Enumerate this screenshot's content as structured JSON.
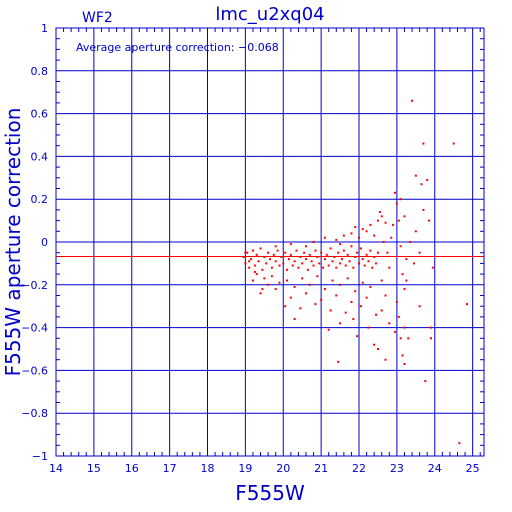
{
  "chart_data": {
    "type": "scatter",
    "title": "lmc_u2xq04",
    "subtitle": "WF2",
    "annotation": "Average aperture correction: −0.068",
    "xlabel": "F555W",
    "ylabel": "F555W aperture correction",
    "xlim": [
      14,
      25.3
    ],
    "ylim": [
      -1,
      1
    ],
    "x_ticks": [
      14,
      15,
      16,
      17,
      18,
      19,
      20,
      21,
      22,
      23,
      24,
      25
    ],
    "y_ticks": [
      -1,
      -0.8,
      -0.6,
      -0.4,
      -0.2,
      0,
      0.2,
      0.4,
      0.6,
      0.8,
      1
    ],
    "x_tick_labels": [
      "14",
      "15",
      "16",
      "17",
      "18",
      "19",
      "20",
      "21",
      "22",
      "23",
      "24",
      "25"
    ],
    "y_tick_labels": [
      "−1",
      "−0.8",
      "−0.6",
      "−0.4",
      "−0.2",
      "0",
      "0.2",
      "0.4",
      "0.6",
      "0.8",
      "1"
    ],
    "grid": true,
    "reference_line": -0.068,
    "colors": {
      "axes": "#0000cc",
      "points": "#ff0000",
      "reference_line": "#ff0000"
    },
    "points": [
      [
        18.95,
        -0.07
      ],
      [
        19.0,
        -0.1
      ],
      [
        19.05,
        -0.05
      ],
      [
        19.1,
        -0.12
      ],
      [
        19.15,
        -0.08
      ],
      [
        19.2,
        -0.04
      ],
      [
        19.25,
        -0.11
      ],
      [
        19.3,
        -0.06
      ],
      [
        19.35,
        -0.09
      ],
      [
        19.4,
        -0.03
      ],
      [
        19.45,
        -0.13
      ],
      [
        19.5,
        -0.07
      ],
      [
        19.55,
        -0.1
      ],
      [
        19.6,
        -0.05
      ],
      [
        19.65,
        -0.08
      ],
      [
        19.7,
        -0.12
      ],
      [
        19.75,
        -0.06
      ],
      [
        19.8,
        -0.09
      ],
      [
        19.85,
        -0.04
      ],
      [
        19.9,
        -0.11
      ],
      [
        19.95,
        -0.07
      ],
      [
        20.0,
        -0.1
      ],
      [
        20.05,
        -0.05
      ],
      [
        20.1,
        -0.13
      ],
      [
        20.15,
        -0.08
      ],
      [
        20.2,
        -0.06
      ],
      [
        20.25,
        -0.11
      ],
      [
        20.3,
        -0.09
      ],
      [
        20.35,
        -0.04
      ],
      [
        20.4,
        -0.12
      ],
      [
        20.45,
        -0.07
      ],
      [
        20.5,
        -0.1
      ],
      [
        20.55,
        -0.05
      ],
      [
        20.6,
        -0.08
      ],
      [
        20.65,
        -0.13
      ],
      [
        20.7,
        -0.06
      ],
      [
        20.75,
        -0.09
      ],
      [
        20.8,
        -0.11
      ],
      [
        20.85,
        -0.04
      ],
      [
        20.9,
        -0.07
      ],
      [
        20.95,
        -0.1
      ],
      [
        21.0,
        -0.05
      ],
      [
        21.05,
        -0.12
      ],
      [
        21.1,
        -0.08
      ],
      [
        21.15,
        -0.06
      ],
      [
        21.2,
        -0.11
      ],
      [
        21.25,
        -0.03
      ],
      [
        21.3,
        -0.09
      ],
      [
        21.35,
        -0.07
      ],
      [
        21.4,
        -0.12
      ],
      [
        21.45,
        -0.05
      ],
      [
        21.5,
        -0.1
      ],
      [
        21.55,
        -0.08
      ],
      [
        21.6,
        -0.04
      ],
      [
        21.65,
        -0.11
      ],
      [
        21.7,
        -0.06
      ],
      [
        21.75,
        -0.09
      ],
      [
        21.8,
        -0.02
      ],
      [
        21.85,
        -0.12
      ],
      [
        21.9,
        -0.07
      ],
      [
        21.95,
        -0.05
      ],
      [
        22.0,
        -0.1
      ],
      [
        22.05,
        -0.03
      ],
      [
        22.1,
        -0.08
      ],
      [
        22.15,
        -0.11
      ],
      [
        22.2,
        -0.06
      ],
      [
        22.25,
        -0.09
      ],
      [
        22.3,
        -0.04
      ],
      [
        22.35,
        -0.12
      ],
      [
        22.4,
        -0.07
      ],
      [
        22.45,
        -0.1
      ],
      [
        22.5,
        -0.05
      ],
      [
        19.3,
        -0.15
      ],
      [
        19.5,
        -0.17
      ],
      [
        19.7,
        -0.16
      ],
      [
        19.9,
        -0.19
      ],
      [
        20.1,
        -0.18
      ],
      [
        20.3,
        -0.21
      ],
      [
        20.5,
        -0.17
      ],
      [
        20.7,
        -0.2
      ],
      [
        20.9,
        -0.16
      ],
      [
        21.1,
        -0.22
      ],
      [
        21.3,
        -0.18
      ],
      [
        21.5,
        -0.2
      ],
      [
        21.7,
        -0.17
      ],
      [
        21.9,
        -0.23
      ],
      [
        22.1,
        -0.19
      ],
      [
        22.3,
        -0.21
      ],
      [
        19.4,
        -0.24
      ],
      [
        19.8,
        -0.22
      ],
      [
        20.2,
        -0.26
      ],
      [
        20.6,
        -0.24
      ],
      [
        21.0,
        -0.27
      ],
      [
        21.4,
        -0.25
      ],
      [
        21.8,
        -0.28
      ],
      [
        22.2,
        -0.26
      ],
      [
        20.05,
        -0.3
      ],
      [
        20.45,
        -0.31
      ],
      [
        20.85,
        -0.29
      ],
      [
        21.25,
        -0.32
      ],
      [
        21.65,
        -0.33
      ],
      [
        22.05,
        -0.3
      ],
      [
        22.45,
        -0.34
      ],
      [
        20.3,
        -0.36
      ],
      [
        21.5,
        -0.38
      ],
      [
        21.85,
        -0.36
      ],
      [
        22.25,
        -0.4
      ],
      [
        21.2,
        -0.41
      ],
      [
        21.95,
        -0.44
      ],
      [
        19.6,
        -0.2
      ],
      [
        19.2,
        -0.18
      ],
      [
        19.45,
        -0.22
      ],
      [
        20.8,
        0.0
      ],
      [
        21.1,
        0.02
      ],
      [
        21.4,
        0.01
      ],
      [
        21.6,
        0.03
      ],
      [
        21.8,
        0.04
      ],
      [
        22.0,
        0.02
      ],
      [
        22.2,
        0.05
      ],
      [
        22.4,
        0.03
      ],
      [
        21.5,
        -0.01
      ],
      [
        20.6,
        -0.02
      ],
      [
        20.2,
        -0.01
      ],
      [
        19.8,
        -0.02
      ],
      [
        22.1,
        0.06
      ],
      [
        21.9,
        0.07
      ],
      [
        22.3,
        0.08
      ],
      [
        22.5,
        0.1
      ],
      [
        22.6,
        0.12
      ],
      [
        22.7,
        0.09
      ],
      [
        22.55,
        0.14
      ],
      [
        22.65,
        0.0
      ],
      [
        22.75,
        -0.05
      ],
      [
        22.8,
        -0.12
      ],
      [
        22.6,
        -0.18
      ],
      [
        22.7,
        -0.25
      ],
      [
        22.85,
        0.02
      ],
      [
        22.9,
        0.08
      ],
      [
        23.0,
        0.18
      ],
      [
        23.05,
        0.1
      ],
      [
        23.1,
        -0.02
      ],
      [
        23.15,
        -0.15
      ],
      [
        23.2,
        -0.22
      ],
      [
        23.25,
        -0.08
      ],
      [
        22.6,
        -0.32
      ],
      [
        22.8,
        -0.38
      ],
      [
        22.95,
        -0.42
      ],
      [
        23.05,
        -0.35
      ],
      [
        23.1,
        -0.45
      ],
      [
        23.2,
        -0.4
      ],
      [
        22.4,
        -0.48
      ],
      [
        22.5,
        -0.5
      ],
      [
        22.95,
        0.23
      ],
      [
        23.1,
        0.2
      ],
      [
        23.2,
        0.12
      ],
      [
        23.35,
        0.0
      ],
      [
        23.45,
        -0.1
      ],
      [
        23.5,
        0.05
      ],
      [
        23.6,
        -0.05
      ],
      [
        23.7,
        0.15
      ],
      [
        23.8,
        0.29
      ],
      [
        23.65,
        0.27
      ],
      [
        23.5,
        0.31
      ],
      [
        23.85,
        0.1
      ],
      [
        23.95,
        -0.12
      ],
      [
        23.9,
        -0.4
      ],
      [
        23.75,
        -0.65
      ],
      [
        23.4,
        0.66
      ],
      [
        23.7,
        0.46
      ],
      [
        24.5,
        0.46
      ],
      [
        24.85,
        -0.29
      ],
      [
        24.65,
        -0.94
      ],
      [
        23.15,
        -0.53
      ],
      [
        23.2,
        -0.57
      ],
      [
        23.3,
        -0.45
      ],
      [
        21.45,
        -0.56
      ],
      [
        23.0,
        -0.28
      ],
      [
        23.25,
        -0.18
      ],
      [
        23.6,
        -0.3
      ],
      [
        23.9,
        -0.45
      ],
      [
        22.7,
        -0.55
      ],
      [
        19.0,
        -0.05
      ],
      [
        19.1,
        -0.09
      ],
      [
        19.25,
        -0.14
      ]
    ]
  }
}
